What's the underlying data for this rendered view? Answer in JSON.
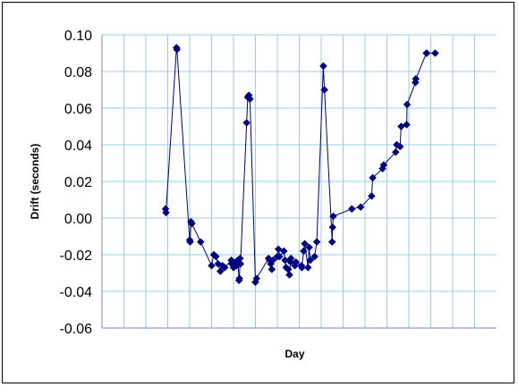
{
  "chart_data": {
    "type": "scatter",
    "title": "",
    "xlabel": "Day",
    "ylabel": "Drift (seconds)",
    "ylim": [
      -0.06,
      0.1
    ],
    "yticks": [
      "0.10",
      "0.08",
      "0.06",
      "0.04",
      "0.02",
      "0.00",
      "-0.02",
      "-0.04",
      "-0.06"
    ],
    "ytick_values": [
      0.1,
      0.08,
      0.06,
      0.04,
      0.02,
      0.0,
      -0.02,
      -0.04,
      -0.06
    ],
    "xlim": [
      0,
      18
    ],
    "x_gridlines": 17,
    "grid": true,
    "colors": {
      "series": "#000080",
      "grid": "#99ccee",
      "plot_border": "#8080c0"
    },
    "series": [
      {
        "x": [
          2.9,
          2.92,
          3.4,
          3.42,
          4.0,
          4.02,
          4.06,
          4.1,
          4.5,
          5.0,
          5.1,
          5.2,
          5.3,
          5.4,
          5.5,
          5.6,
          5.9,
          5.92,
          6.0,
          6.1,
          6.14,
          6.2,
          6.25,
          6.27,
          6.3,
          6.32,
          6.6,
          6.65,
          6.7,
          6.75,
          7.0,
          7.05,
          7.6,
          7.65,
          7.7,
          7.75,
          7.8,
          8.0,
          8.05,
          8.1,
          8.3,
          8.35,
          8.4,
          8.5,
          8.55,
          8.6,
          8.62,
          8.8,
          8.85,
          9.1,
          9.12,
          9.2,
          9.25,
          9.4,
          9.45,
          9.5,
          9.7,
          9.8,
          10.1,
          10.15,
          10.5,
          10.52,
          10.55,
          11.4,
          11.8,
          12.3,
          12.35,
          12.8,
          12.85,
          13.4,
          13.45,
          13.6,
          13.65,
          13.9,
          13.92,
          14.3,
          14.32,
          14.8,
          14.82,
          15.2
        ],
        "values": [
          0.005,
          0.003,
          0.093,
          0.092,
          -0.012,
          -0.013,
          -0.002,
          -0.003,
          -0.013,
          -0.026,
          -0.02,
          -0.021,
          -0.025,
          -0.029,
          -0.026,
          -0.027,
          -0.023,
          -0.025,
          -0.027,
          -0.024,
          -0.026,
          -0.023,
          -0.034,
          -0.033,
          -0.022,
          -0.025,
          0.052,
          0.066,
          0.067,
          0.065,
          -0.035,
          -0.033,
          -0.022,
          -0.023,
          -0.025,
          -0.028,
          -0.023,
          -0.021,
          -0.017,
          -0.021,
          -0.018,
          -0.023,
          -0.027,
          -0.028,
          -0.031,
          -0.024,
          -0.022,
          -0.026,
          -0.024,
          -0.026,
          -0.027,
          -0.018,
          -0.014,
          -0.027,
          -0.016,
          -0.023,
          -0.021,
          -0.013,
          0.083,
          0.07,
          -0.013,
          -0.005,
          0.001,
          0.005,
          0.006,
          0.012,
          0.022,
          0.027,
          0.029,
          0.036,
          0.04,
          0.039,
          0.05,
          0.051,
          0.062,
          0.074,
          0.076,
          0.09,
          0.09,
          0.09
        ]
      }
    ]
  }
}
